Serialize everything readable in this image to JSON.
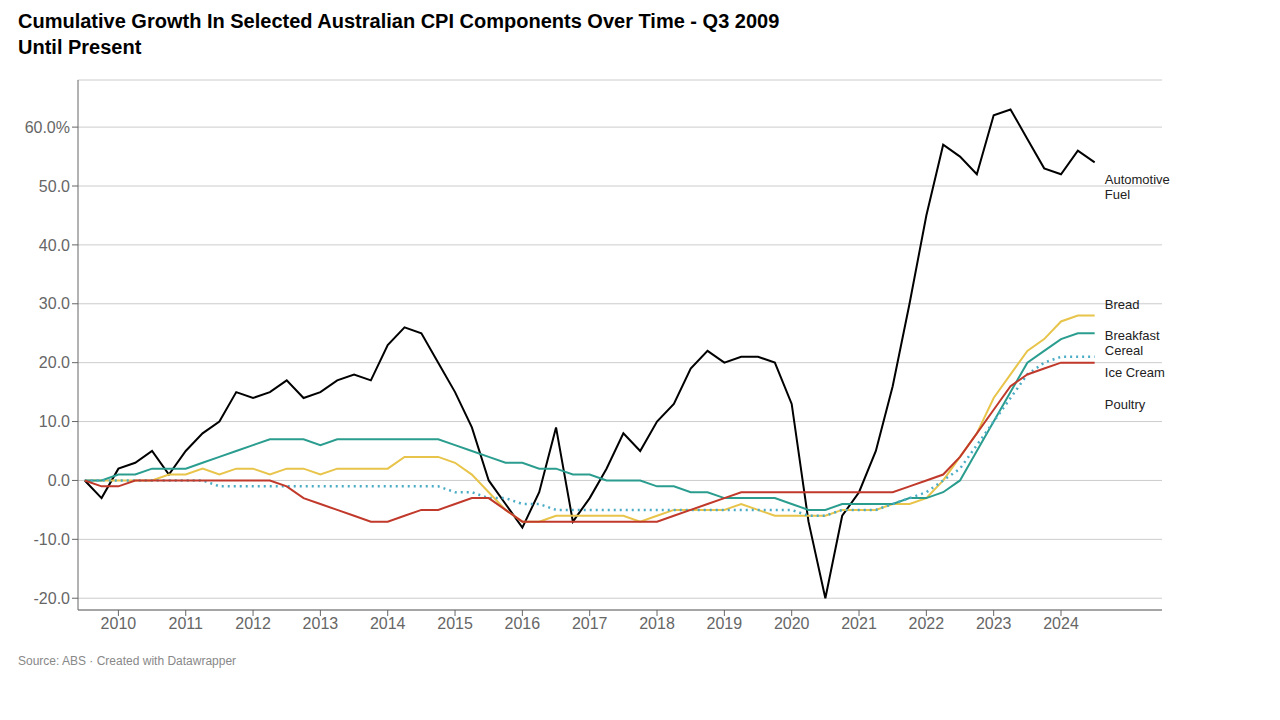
{
  "chart_data": {
    "type": "line",
    "title": "Cumulative Growth In Selected Australian CPI Components Over Time - Q3 2009",
    "subtitle": "Until Present",
    "x": [
      2009.5,
      2009.75,
      2010.0,
      2010.25,
      2010.5,
      2010.75,
      2011.0,
      2011.25,
      2011.5,
      2011.75,
      2012.0,
      2012.25,
      2012.5,
      2012.75,
      2013.0,
      2013.25,
      2013.5,
      2013.75,
      2014.0,
      2014.25,
      2014.5,
      2014.75,
      2015.0,
      2015.25,
      2015.5,
      2015.75,
      2016.0,
      2016.25,
      2016.5,
      2016.75,
      2017.0,
      2017.25,
      2017.5,
      2017.75,
      2018.0,
      2018.25,
      2018.5,
      2018.75,
      2019.0,
      2019.25,
      2019.5,
      2019.75,
      2020.0,
      2020.25,
      2020.5,
      2020.75,
      2021.0,
      2021.25,
      2021.5,
      2021.75,
      2022.0,
      2022.25,
      2022.5,
      2022.75,
      2023.0,
      2023.25,
      2023.5,
      2023.75,
      2024.0,
      2024.25,
      2024.5
    ],
    "series": [
      {
        "name": "Automotive\nFuel",
        "color": "#000000",
        "line_style": "solid",
        "values": [
          0,
          -3,
          2,
          3,
          5,
          1,
          5,
          8,
          10,
          15,
          14,
          15,
          17,
          14,
          15,
          17,
          18,
          17,
          23,
          26,
          25,
          20,
          15,
          9,
          0,
          -4,
          -8,
          -2,
          9,
          -7,
          -3,
          2,
          8,
          5,
          10,
          13,
          19,
          22,
          20,
          21,
          21,
          20,
          13,
          -7,
          -20,
          -6,
          -2,
          5,
          16,
          30,
          45,
          57,
          55,
          52,
          62,
          63,
          58,
          53,
          52,
          56,
          54
        ]
      },
      {
        "name": "Bread",
        "color": "#e8c44a",
        "line_style": "solid",
        "values": [
          0,
          0,
          0,
          0,
          0,
          1,
          1,
          2,
          1,
          2,
          2,
          1,
          2,
          2,
          1,
          2,
          2,
          2,
          2,
          4,
          4,
          4,
          3,
          1,
          -2,
          -5,
          -7,
          -7,
          -6,
          -6,
          -6,
          -6,
          -6,
          -7,
          -6,
          -5,
          -5,
          -5,
          -5,
          -4,
          -5,
          -6,
          -6,
          -6,
          -6,
          -5,
          -5,
          -5,
          -4,
          -4,
          -3,
          0,
          4,
          8,
          14,
          18,
          22,
          24,
          27,
          28,
          28
        ]
      },
      {
        "name": "Breakfast\nCereal",
        "color": "#2a9d8f",
        "line_style": "solid",
        "values": [
          0,
          0,
          1,
          1,
          2,
          2,
          2,
          3,
          4,
          5,
          6,
          7,
          7,
          7,
          6,
          7,
          7,
          7,
          7,
          7,
          7,
          7,
          6,
          5,
          4,
          3,
          3,
          2,
          2,
          1,
          1,
          0,
          0,
          0,
          -1,
          -1,
          -2,
          -2,
          -3,
          -3,
          -3,
          -3,
          -4,
          -5,
          -5,
          -4,
          -4,
          -4,
          -4,
          -3,
          -3,
          -2,
          0,
          5,
          10,
          15,
          20,
          22,
          24,
          25,
          25
        ]
      },
      {
        "name": "Ice Cream",
        "color": "#4bacc6",
        "line_style": "dotted",
        "values": [
          0,
          0,
          0,
          0,
          0,
          0,
          0,
          0,
          -1,
          -1,
          -1,
          -1,
          -1,
          -1,
          -1,
          -1,
          -1,
          -1,
          -1,
          -1,
          -1,
          -1,
          -2,
          -2,
          -3,
          -3,
          -4,
          -4,
          -5,
          -5,
          -5,
          -5,
          -5,
          -5,
          -5,
          -5,
          -5,
          -5,
          -5,
          -5,
          -5,
          -5,
          -5,
          -6,
          -6,
          -5,
          -5,
          -5,
          -4,
          -3,
          -2,
          0,
          2,
          6,
          10,
          14,
          18,
          20,
          21,
          21,
          21
        ]
      },
      {
        "name": "Poultry",
        "color": "#c0392b",
        "line_style": "solid",
        "values": [
          0,
          -1,
          -1,
          0,
          0,
          0,
          0,
          0,
          0,
          0,
          0,
          0,
          -1,
          -3,
          -4,
          -5,
          -6,
          -7,
          -7,
          -6,
          -5,
          -5,
          -4,
          -3,
          -3,
          -5,
          -7,
          -7,
          -7,
          -7,
          -7,
          -7,
          -7,
          -7,
          -7,
          -6,
          -5,
          -4,
          -3,
          -2,
          -2,
          -2,
          -2,
          -2,
          -2,
          -2,
          -2,
          -2,
          -2,
          -1,
          0,
          1,
          4,
          8,
          12,
          16,
          18,
          19,
          20,
          20,
          20
        ]
      }
    ],
    "xlim": [
      2009.4,
      2025.5
    ],
    "xticks": [
      2010,
      2011,
      2012,
      2013,
      2014,
      2015,
      2016,
      2017,
      2018,
      2019,
      2020,
      2021,
      2022,
      2023,
      2024
    ],
    "ylim": [
      -22,
      68
    ],
    "yticks": [
      {
        "value": -20,
        "label": "-20.0"
      },
      {
        "value": -10,
        "label": "-10.0"
      },
      {
        "value": 0,
        "label": "0.0"
      },
      {
        "value": 10,
        "label": "10.0"
      },
      {
        "value": 20,
        "label": "20.0"
      },
      {
        "value": 30,
        "label": "30.0"
      },
      {
        "value": 40,
        "label": "40.0"
      },
      {
        "value": 50,
        "label": "50.0"
      },
      {
        "value": 60,
        "label": "60.0%"
      }
    ],
    "grid": true,
    "annotations": [
      {
        "text": "Automotive\nFuel",
        "x": 2024.65,
        "y": 50,
        "color": "#222222"
      },
      {
        "text": "Bread",
        "x": 2024.65,
        "y": 30,
        "color": "#222222"
      },
      {
        "text": "Breakfast\nCereal",
        "x": 2024.65,
        "y": 23.5,
        "color": "#222222"
      },
      {
        "text": "Ice Cream",
        "x": 2024.65,
        "y": 18.5,
        "color": "#222222"
      },
      {
        "text": "Poultry",
        "x": 2024.65,
        "y": 13,
        "color": "#222222"
      },
      {
        "text": "Source: ABS · Created with Datawrapper"
      }
    ]
  }
}
